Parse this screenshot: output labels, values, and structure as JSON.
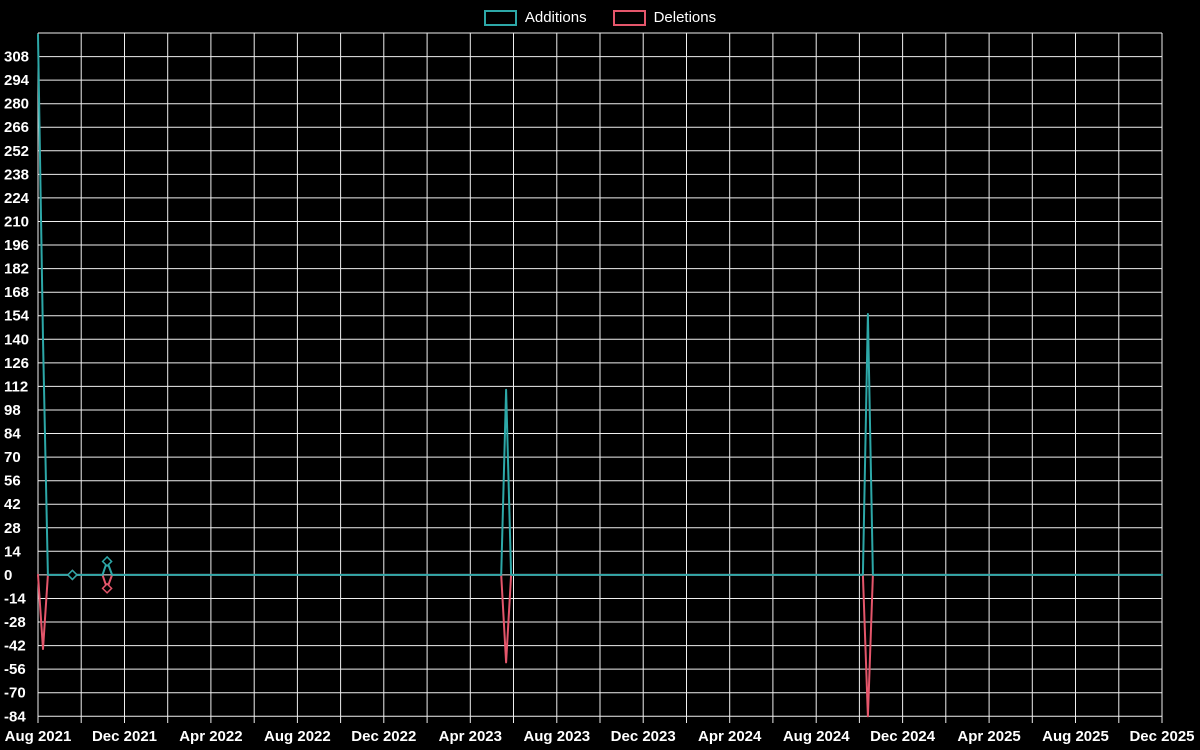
{
  "chart_data": {
    "type": "line",
    "title": "",
    "background": "#000000",
    "grid_color": "#efefef",
    "text_color": "#ffffff",
    "grid": true,
    "legend_position": "top-center",
    "x_tick_labels": [
      "Aug 2021",
      "Dec 2021",
      "Apr 2022",
      "Aug 2022",
      "Dec 2022",
      "Apr 2023",
      "Aug 2023",
      "Dec 2023",
      "Apr 2024",
      "Aug 2024",
      "Dec 2024",
      "Apr 2025",
      "Aug 2025",
      "Dec 2025"
    ],
    "x_tick_interval_months": 4,
    "x_gridline_interval_months": 2,
    "x_range_months": [
      0,
      52
    ],
    "x_start": "2021-08-01",
    "y_ticks": [
      308,
      294,
      280,
      266,
      252,
      238,
      224,
      210,
      196,
      182,
      168,
      154,
      140,
      126,
      112,
      98,
      84,
      70,
      56,
      42,
      28,
      14,
      0,
      -14,
      -28,
      -42,
      -56,
      -70,
      -84
    ],
    "y_tick_step": 14,
    "ylim": [
      -88,
      322
    ],
    "series": [
      {
        "name": "Additions",
        "color": "#2da8a8",
        "points": [
          {
            "date": "2021-08-01",
            "value": 321
          },
          {
            "date": "2021-08-08",
            "value": 140
          },
          {
            "date": "2021-08-15",
            "value": 0
          },
          {
            "date": "2021-09-19",
            "value": 0,
            "marker": true
          },
          {
            "date": "2021-10-31",
            "value": 0
          },
          {
            "date": "2021-11-07",
            "value": 8,
            "marker": true
          },
          {
            "date": "2021-11-14",
            "value": 0
          },
          {
            "date": "2023-05-14",
            "value": 0
          },
          {
            "date": "2023-05-21",
            "value": 110
          },
          {
            "date": "2023-05-28",
            "value": 0
          },
          {
            "date": "2024-10-06",
            "value": 0
          },
          {
            "date": "2024-10-13",
            "value": 155
          },
          {
            "date": "2024-10-20",
            "value": 0
          },
          {
            "date": "2025-12-01",
            "value": 0
          }
        ]
      },
      {
        "name": "Deletions",
        "color": "#e5566b",
        "points": [
          {
            "date": "2021-08-01",
            "value": 0
          },
          {
            "date": "2021-08-08",
            "value": -44
          },
          {
            "date": "2021-08-15",
            "value": 0
          },
          {
            "date": "2021-09-19",
            "value": 0,
            "marker": true
          },
          {
            "date": "2021-10-31",
            "value": 0
          },
          {
            "date": "2021-11-07",
            "value": -8,
            "marker": true
          },
          {
            "date": "2021-11-14",
            "value": 0
          },
          {
            "date": "2023-05-14",
            "value": 0
          },
          {
            "date": "2023-05-21",
            "value": -52
          },
          {
            "date": "2023-05-28",
            "value": 0
          },
          {
            "date": "2024-10-06",
            "value": 0
          },
          {
            "date": "2024-10-13",
            "value": -84
          },
          {
            "date": "2024-10-20",
            "value": 0
          },
          {
            "date": "2025-12-01",
            "value": 0
          }
        ]
      }
    ]
  }
}
